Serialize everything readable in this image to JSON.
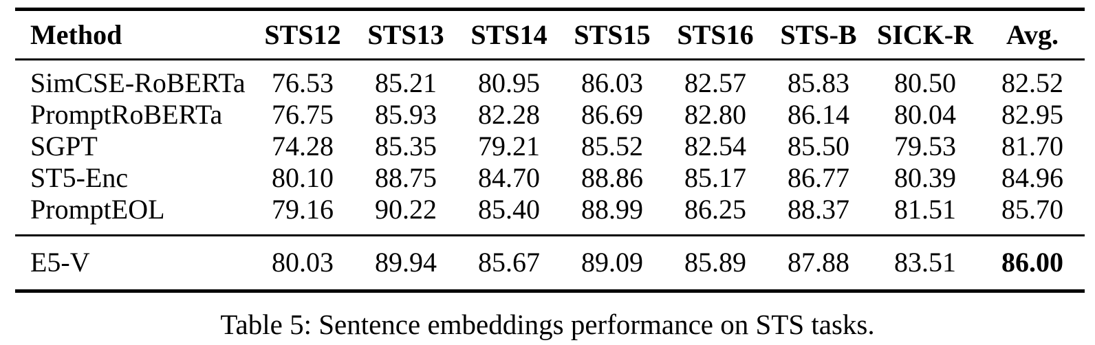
{
  "page": {
    "background": "#ffffff",
    "text_color": "#000000",
    "rule_color": "#000000"
  },
  "table": {
    "columns": [
      {
        "label": "Method",
        "align": "left"
      },
      {
        "label": "STS12",
        "align": "center"
      },
      {
        "label": "STS13",
        "align": "center"
      },
      {
        "label": "STS14",
        "align": "center"
      },
      {
        "label": "STS15",
        "align": "center"
      },
      {
        "label": "STS16",
        "align": "center"
      },
      {
        "label": "STS-B",
        "align": "center"
      },
      {
        "label": "SICK-R",
        "align": "center"
      },
      {
        "label": "Avg.",
        "align": "center"
      }
    ],
    "groups": [
      {
        "name": "baselines",
        "rows": [
          {
            "method": "SimCSE-RoBERTa",
            "values": [
              "76.53",
              "85.21",
              "80.95",
              "86.03",
              "82.57",
              "85.83",
              "80.50",
              "82.52"
            ],
            "bold_value_indexes": []
          },
          {
            "method": "PromptRoBERTa",
            "values": [
              "76.75",
              "85.93",
              "82.28",
              "86.69",
              "82.80",
              "86.14",
              "80.04",
              "82.95"
            ],
            "bold_value_indexes": []
          },
          {
            "method": "SGPT",
            "values": [
              "74.28",
              "85.35",
              "79.21",
              "85.52",
              "82.54",
              "85.50",
              "79.53",
              "81.70"
            ],
            "bold_value_indexes": []
          },
          {
            "method": "ST5-Enc",
            "values": [
              "80.10",
              "88.75",
              "84.70",
              "88.86",
              "85.17",
              "86.77",
              "80.39",
              "84.96"
            ],
            "bold_value_indexes": []
          },
          {
            "method": "PromptEOL",
            "values": [
              "79.16",
              "90.22",
              "85.40",
              "88.99",
              "86.25",
              "88.37",
              "81.51",
              "85.70"
            ],
            "bold_value_indexes": []
          }
        ]
      },
      {
        "name": "highlighted-result",
        "rows": [
          {
            "method": "E5-V",
            "values": [
              "80.03",
              "89.94",
              "85.67",
              "89.09",
              "85.89",
              "87.88",
              "83.51",
              "86.00"
            ],
            "bold_value_indexes": [
              7
            ]
          }
        ]
      }
    ],
    "caption": "Table 5: Sentence embeddings performance on STS tasks."
  }
}
